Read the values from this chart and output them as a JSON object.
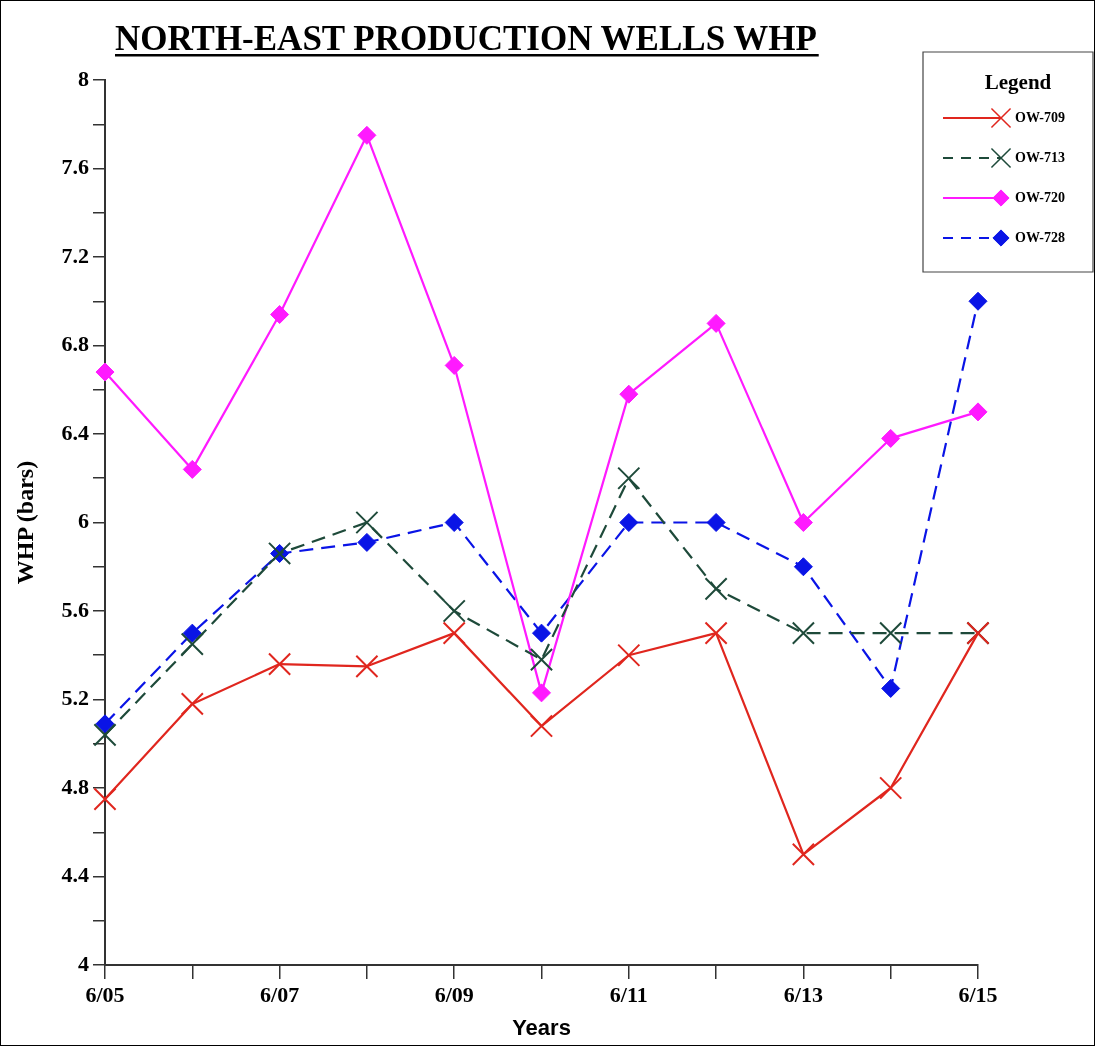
{
  "chart_data": {
    "type": "line",
    "title": "NORTH-EAST PRODUCTION WELLS WHP",
    "xlabel": "Years",
    "ylabel": "WHP (bars)",
    "legend_title": "Legend",
    "legend": "top right",
    "grid": false,
    "categories": [
      "6/05",
      null,
      "6/07",
      null,
      "6/09",
      null,
      "6/11",
      null,
      "6/13",
      null,
      "6/15"
    ],
    "ylim": [
      4,
      8
    ],
    "yticks": [
      4,
      {
        "value": 4.2,
        "label": null
      },
      4.4,
      {
        "value": 4.6,
        "label": null
      },
      4.8,
      {
        "value": 5,
        "label": null
      },
      5.2,
      {
        "value": 5.4,
        "label": null
      },
      5.6,
      {
        "value": 5.8,
        "label": null
      },
      6,
      {
        "value": 6.2,
        "label": null
      },
      6.4,
      {
        "value": 6.6,
        "label": null
      },
      6.8,
      {
        "value": 7,
        "label": null
      },
      7.2,
      {
        "value": 7.4,
        "label": null
      },
      7.6,
      {
        "value": 7.8,
        "label": null
      },
      8
    ],
    "series": [
      {
        "name": "OW-709",
        "color": "#e0261e",
        "marker": "cross",
        "line_style": "solid",
        "values": [
          4.75,
          5.18,
          5.36,
          5.35,
          5.5,
          5.08,
          5.4,
          5.5,
          4.5,
          4.8,
          5.5
        ]
      },
      {
        "name": "OW-713",
        "color": "#1e4a3a",
        "marker": "cross",
        "line_style": "dashed",
        "values": [
          5.04,
          5.45,
          5.86,
          6.0,
          5.6,
          5.38,
          6.2,
          5.7,
          5.5,
          5.5,
          5.5
        ]
      },
      {
        "name": "OW-720",
        "color": "#ff1aff",
        "marker": "diamond",
        "line_style": "solid",
        "values": [
          6.68,
          6.24,
          6.94,
          7.75,
          6.71,
          5.23,
          6.58,
          6.9,
          6.0,
          6.38,
          6.5
        ]
      },
      {
        "name": "OW-728",
        "color": "#0a14e6",
        "marker": "diamond",
        "line_style": "dashed",
        "values": [
          5.09,
          5.5,
          5.86,
          5.91,
          6.0,
          5.5,
          6.0,
          6.0,
          5.8,
          5.25,
          7.0
        ]
      }
    ]
  }
}
